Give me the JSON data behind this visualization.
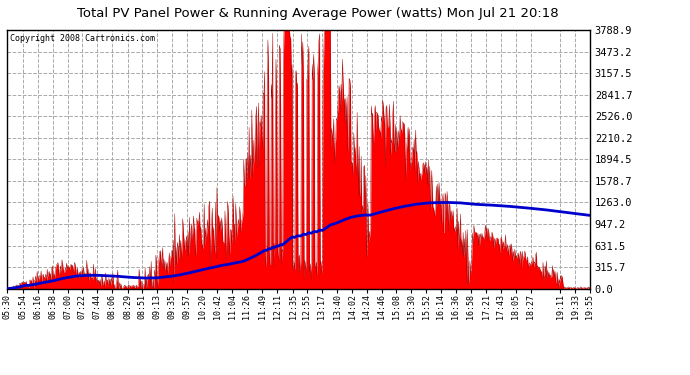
{
  "title": "Total PV Panel Power & Running Average Power (watts) Mon Jul 21 20:18",
  "copyright": "Copyright 2008 Cartronics.com",
  "background_color": "#ffffff",
  "plot_bg_color": "#ffffff",
  "y_tick_labels": [
    "0.0",
    "315.7",
    "631.5",
    "947.2",
    "1263.0",
    "1578.7",
    "1894.5",
    "2210.2",
    "2526.0",
    "2841.7",
    "3157.5",
    "3473.2",
    "3788.9"
  ],
  "y_tick_values": [
    0.0,
    315.7,
    631.5,
    947.2,
    1263.0,
    1578.7,
    1894.5,
    2210.2,
    2526.0,
    2841.7,
    3157.5,
    3473.2,
    3788.9
  ],
  "ylim": [
    0,
    3788.9
  ],
  "bar_color": "#ff0000",
  "line_color": "#0000cc",
  "line_width": 2.0,
  "grid_color": "#aaaaaa",
  "grid_style": "--",
  "x_labels": [
    "05:30",
    "05:54",
    "06:16",
    "06:38",
    "07:00",
    "07:22",
    "07:44",
    "08:06",
    "08:29",
    "08:51",
    "09:13",
    "09:35",
    "09:57",
    "10:20",
    "10:42",
    "11:04",
    "11:26",
    "11:49",
    "12:11",
    "12:35",
    "12:55",
    "13:17",
    "13:40",
    "14:02",
    "14:24",
    "14:46",
    "15:08",
    "15:30",
    "15:52",
    "16:14",
    "16:36",
    "16:58",
    "17:21",
    "17:43",
    "18:05",
    "18:27",
    "19:11",
    "19:33",
    "19:55"
  ]
}
